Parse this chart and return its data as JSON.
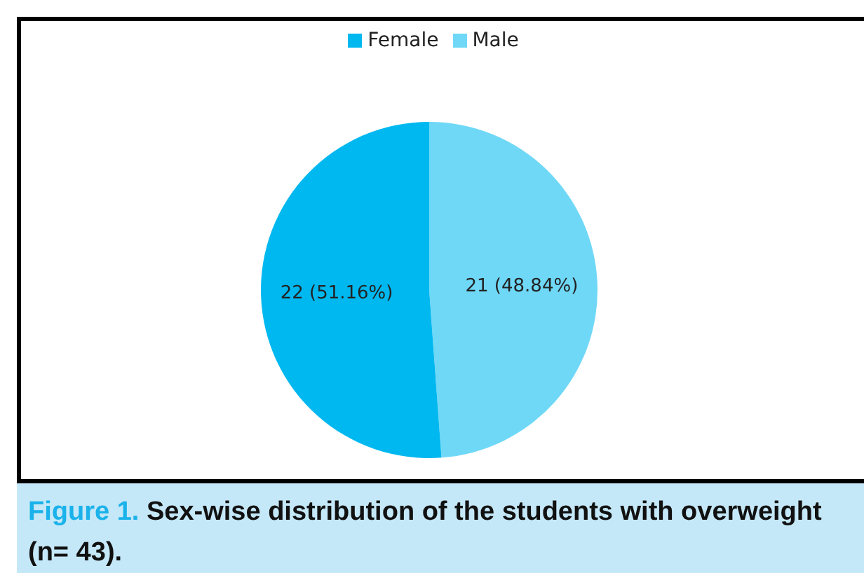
{
  "chart_data": {
    "type": "pie",
    "categories": [
      "Male",
      "Female"
    ],
    "values": [
      21,
      22
    ],
    "colors": [
      "#6fd8f7",
      "#00b8f0"
    ],
    "value_labels": [
      "21 (48.84%)",
      "22 (51.16%)"
    ],
    "legend": "top",
    "annotations": [
      "Figure 1. Sex-wise distribution of the students with overweight (n= 43)."
    ]
  }
}
